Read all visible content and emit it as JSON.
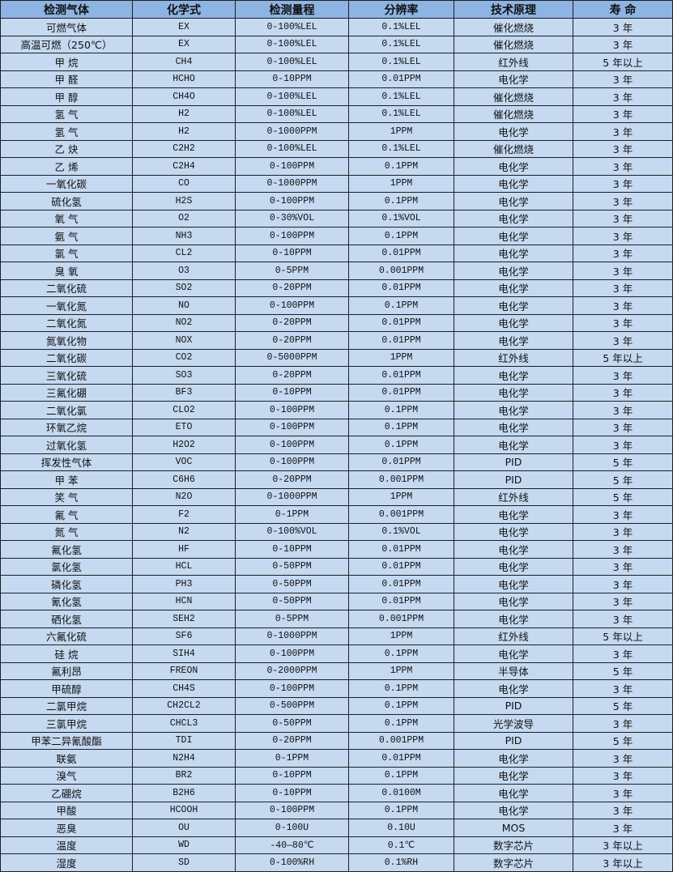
{
  "colors": {
    "header_bg": "#8db4e2",
    "row_bg": "#c5d9f1",
    "border": "#1f1f1f"
  },
  "headers": [
    "检测气体",
    "化学式",
    "检测量程",
    "分辨率",
    "技术原理",
    "寿 命"
  ],
  "rows": [
    [
      "可燃气体",
      "EX",
      "0-100%LEL",
      "0.1%LEL",
      "催化燃烧",
      "3 年"
    ],
    [
      "高温可燃（250℃）",
      "EX",
      "0-100%LEL",
      "0.1%LEL",
      "催化燃烧",
      "3 年"
    ],
    [
      "甲 烷",
      "CH4",
      "0-100%LEL",
      "0.1%LEL",
      "红外线",
      "5 年以上"
    ],
    [
      "甲 醛",
      "HCHO",
      "0-10PPM",
      "0.01PPM",
      "电化学",
      "3 年"
    ],
    [
      "甲 醇",
      "CH4O",
      "0-100%LEL",
      "0.1%LEL",
      "催化燃烧",
      "3 年"
    ],
    [
      "氢 气",
      "H2",
      "0-100%LEL",
      "0.1%LEL",
      "催化燃烧",
      "3 年"
    ],
    [
      "氢 气",
      "H2",
      "0-1000PPM",
      "1PPM",
      "电化学",
      "3 年"
    ],
    [
      "乙 炔",
      "C2H2",
      "0-100%LEL",
      "0.1%LEL",
      "催化燃烧",
      "3 年"
    ],
    [
      "乙 烯",
      "C2H4",
      "0-100PPM",
      "0.1PPM",
      "电化学",
      "3 年"
    ],
    [
      "一氧化碳",
      "CO",
      "0-1000PPM",
      "1PPM",
      "电化学",
      "3 年"
    ],
    [
      "硫化氢",
      "H2S",
      "0-100PPM",
      "0.1PPM",
      "电化学",
      "3 年"
    ],
    [
      "氧 气",
      "O2",
      "0-30%VOL",
      "0.1%VOL",
      "电化学",
      "3 年"
    ],
    [
      "氨 气",
      "NH3",
      "0-100PPM",
      "0.1PPM",
      "电化学",
      "3 年"
    ],
    [
      "氯 气",
      "CL2",
      "0-10PPM",
      "0.01PPM",
      "电化学",
      "3 年"
    ],
    [
      "臭 氧",
      "O3",
      "0-5PPM",
      "0.001PPM",
      "电化学",
      "3 年"
    ],
    [
      "二氧化硫",
      "SO2",
      "0-20PPM",
      "0.01PPM",
      "电化学",
      "3 年"
    ],
    [
      "一氧化氮",
      "NO",
      "0-100PPM",
      "0.1PPM",
      "电化学",
      "3 年"
    ],
    [
      "二氧化氮",
      "NO2",
      "0-20PPM",
      "0.01PPM",
      "电化学",
      "3 年"
    ],
    [
      "氮氧化物",
      "NOX",
      "0-20PPM",
      "0.01PPM",
      "电化学",
      "3 年"
    ],
    [
      "二氧化碳",
      "CO2",
      "0-5000PPM",
      "1PPM",
      "红外线",
      "5 年以上"
    ],
    [
      "三氧化硫",
      "SO3",
      "0-20PPM",
      "0.01PPM",
      "电化学",
      "3 年"
    ],
    [
      "三氟化硼",
      "BF3",
      "0-10PPM",
      "0.01PPM",
      "电化学",
      "3 年"
    ],
    [
      "二氧化氯",
      "CLO2",
      "0-100PPM",
      "0.1PPM",
      "电化学",
      "3 年"
    ],
    [
      "环氧乙烷",
      "ETO",
      "0-100PPM",
      "0.1PPM",
      "电化学",
      "3 年"
    ],
    [
      "过氧化氢",
      "H2O2",
      "0-100PPM",
      "0.1PPM",
      "电化学",
      "3 年"
    ],
    [
      "挥发性气体",
      "VOC",
      "0-100PPM",
      "0.01PPM",
      "PID",
      "5 年"
    ],
    [
      "甲 苯",
      "C6H6",
      "0-20PPM",
      "0.001PPM",
      "PID",
      "5 年"
    ],
    [
      "笑 气",
      "N2O",
      "0-1000PPM",
      "1PPM",
      "红外线",
      "5 年"
    ],
    [
      "氟 气",
      "F2",
      "0-1PPM",
      "0.001PPM",
      "电化学",
      "3 年"
    ],
    [
      "氮 气",
      "N2",
      "0-100%VOL",
      "0.1%VOL",
      "电化学",
      "3 年"
    ],
    [
      "氟化氢",
      "HF",
      "0-10PPM",
      "0.01PPM",
      "电化学",
      "3 年"
    ],
    [
      "氯化氢",
      "HCL",
      "0-50PPM",
      "0.01PPM",
      "电化学",
      "3 年"
    ],
    [
      "磷化氢",
      "PH3",
      "0-50PPM",
      "0.01PPM",
      "电化学",
      "3 年"
    ],
    [
      "氰化氢",
      "HCN",
      "0-50PPM",
      "0.01PPM",
      "电化学",
      "3 年"
    ],
    [
      "硒化氢",
      "SEH2",
      "0-5PPM",
      "0.001PPM",
      "电化学",
      "3 年"
    ],
    [
      "六氟化硫",
      "SF6",
      "0-1000PPM",
      "1PPM",
      "红外线",
      "5 年以上"
    ],
    [
      "硅 烷",
      "SIH4",
      "0-100PPM",
      "0.1PPM",
      "电化学",
      "3 年"
    ],
    [
      "氟利昂",
      "FREON",
      "0-2000PPM",
      "1PPM",
      "半导体",
      "5 年"
    ],
    [
      "甲硫醇",
      "CH4S",
      "0-100PPM",
      "0.1PPM",
      "电化学",
      "3 年"
    ],
    [
      "二氯甲烷",
      "CH2CL2",
      "0-500PPM",
      "0.1PPM",
      "PID",
      "5 年"
    ],
    [
      "三氯甲烷",
      "CHCL3",
      "0-50PPM",
      "0.1PPM",
      "光学波导",
      "3 年"
    ],
    [
      "甲苯二异氰酸酯",
      "TDI",
      "0-20PPM",
      "0.001PPM",
      "PID",
      "5 年"
    ],
    [
      "联氨",
      "N2H4",
      "0-1PPM",
      "0.01PPM",
      "电化学",
      "3 年"
    ],
    [
      "溴气",
      "BR2",
      "0-10PPM",
      "0.1PPM",
      "电化学",
      "3 年"
    ],
    [
      "乙硼烷",
      "B2H6",
      "0-10PPM",
      "0.0100M",
      "电化学",
      "3 年"
    ],
    [
      "甲酸",
      "HCOOH",
      "0-100PPM",
      "0.1PPM",
      "电化学",
      "3 年"
    ],
    [
      "恶臭",
      "OU",
      "0-100U",
      "0.10U",
      "MOS",
      "3 年"
    ],
    [
      "温度",
      "WD",
      "-40—80℃",
      "0.1℃",
      "数字芯片",
      "3 年以上"
    ],
    [
      "湿度",
      "SD",
      "0-100%RH",
      "0.1%RH",
      "数字芯片",
      "3 年以上"
    ]
  ]
}
